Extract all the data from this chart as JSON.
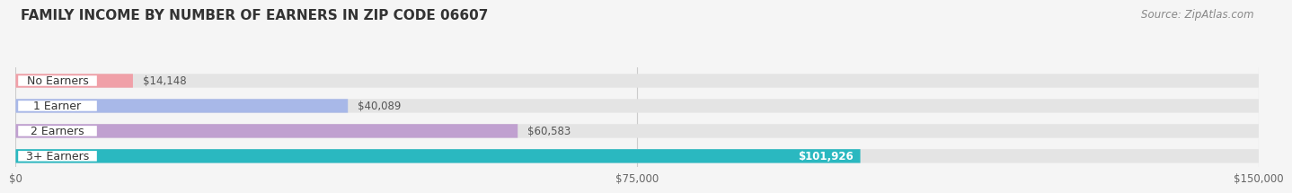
{
  "title": "FAMILY INCOME BY NUMBER OF EARNERS IN ZIP CODE 06607",
  "source": "Source: ZipAtlas.com",
  "categories": [
    "No Earners",
    "1 Earner",
    "2 Earners",
    "3+ Earners"
  ],
  "values": [
    14148,
    40089,
    60583,
    101926
  ],
  "labels": [
    "$14,148",
    "$40,089",
    "$60,583",
    "$101,926"
  ],
  "bar_colors": [
    "#f0a0a8",
    "#a8b8e8",
    "#c0a0d0",
    "#2ab8c0"
  ],
  "x_ticks": [
    0,
    75000,
    150000
  ],
  "x_tick_labels": [
    "$0",
    "$75,000",
    "$150,000"
  ],
  "xlim": [
    0,
    150000
  ],
  "bg_color": "#f5f5f5",
  "bar_bg_color": "#e4e4e4",
  "title_fontsize": 11,
  "source_fontsize": 8.5,
  "label_fontsize": 8.5,
  "category_fontsize": 9
}
